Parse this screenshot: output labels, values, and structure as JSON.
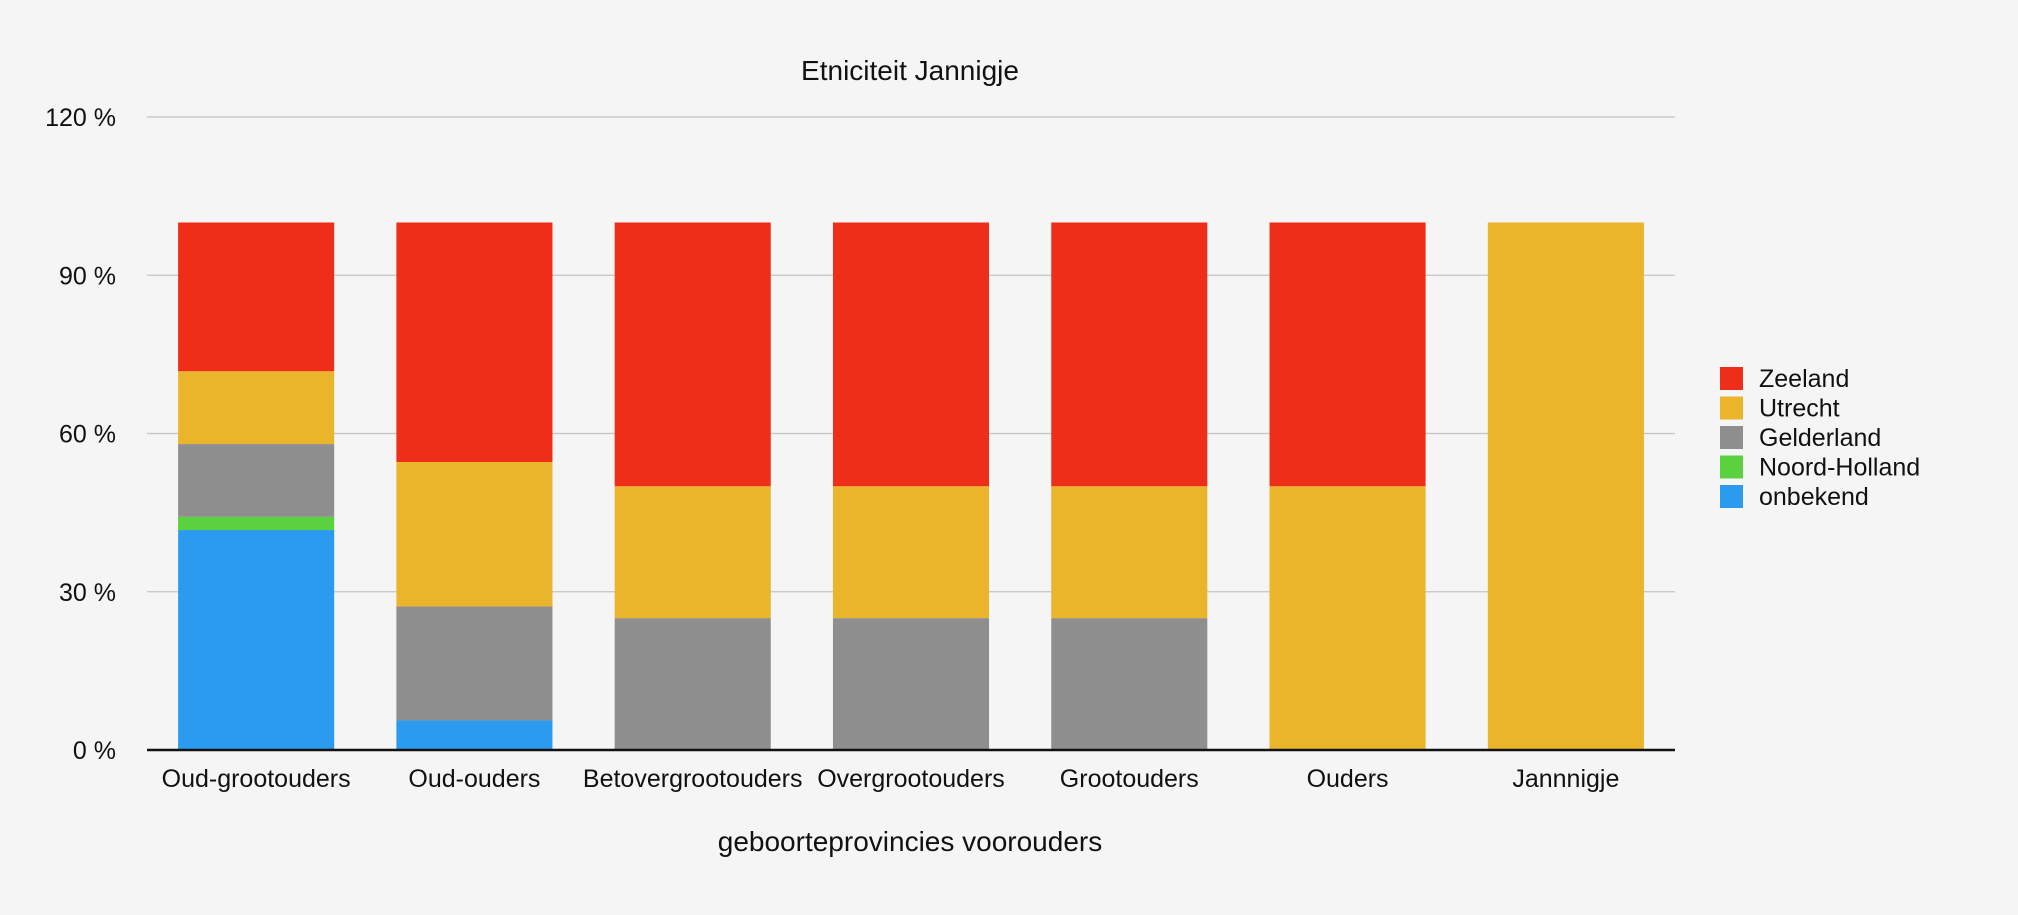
{
  "chart_data": {
    "type": "bar",
    "stacked": true,
    "title": "Etniciteit Jannigje",
    "xlabel": "geboorteprovincies voorouders",
    "ylabel": "",
    "ylim": [
      0,
      120
    ],
    "yticks": [
      0,
      30,
      60,
      90,
      120
    ],
    "ytick_labels": [
      "0 %",
      "30 %",
      "60 %",
      "90 %",
      "120 %"
    ],
    "grid": true,
    "legend_position": "right",
    "categories": [
      "Oud-grootouders",
      "Oud-ouders",
      "Betovergrootouders",
      "Overgrootouders",
      "Grootouders",
      "Ouders",
      "Jannnigje"
    ],
    "series": [
      {
        "name": "onbekend",
        "color": "#2b9bf0",
        "values": [
          41.7,
          5.6,
          0,
          0,
          0,
          0,
          0
        ]
      },
      {
        "name": "Noord-Holland",
        "color": "#5bd13f",
        "values": [
          2.5,
          0,
          0,
          0,
          0,
          0,
          0
        ]
      },
      {
        "name": "Gelderland",
        "color": "#8e8e8e",
        "values": [
          13.8,
          21.6,
          25,
          25,
          25,
          0,
          0
        ]
      },
      {
        "name": "Utrecht",
        "color": "#ebb52b",
        "values": [
          13.8,
          27.4,
          25,
          25,
          25,
          50,
          100
        ]
      },
      {
        "name": "Zeeland",
        "color": "#ef2e19",
        "values": [
          28.2,
          45.4,
          50,
          50,
          50,
          50,
          0
        ]
      }
    ],
    "legend_order": [
      "Zeeland",
      "Utrecht",
      "Gelderland",
      "Noord-Holland",
      "onbekend"
    ]
  }
}
